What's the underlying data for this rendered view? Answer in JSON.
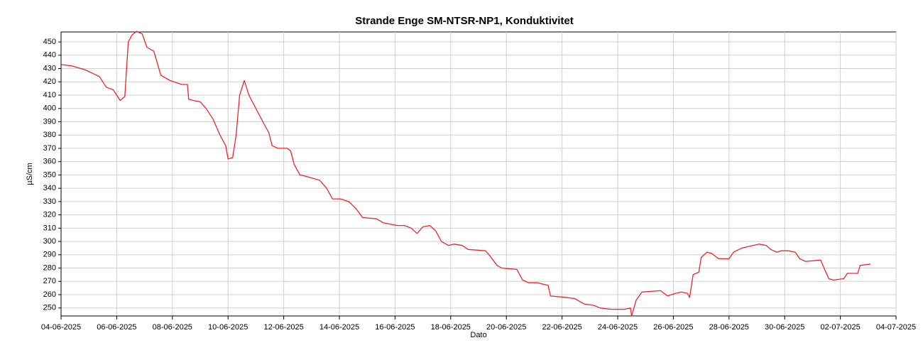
{
  "chart_data": {
    "type": "line",
    "title": "Strande Enge SM-NTSR-NP1, Konduktivitet",
    "x_label": "Dato",
    "y_label": "µS/cm",
    "x": [
      "2025-06-04T00:00",
      "2025-06-04T09:00",
      "2025-06-04T21:00",
      "2025-06-05T09:00",
      "2025-06-05T15:00",
      "2025-06-05T21:00",
      "2025-06-06T03:00",
      "2025-06-06T07:00",
      "2025-06-06T10:00",
      "2025-06-06T13:00",
      "2025-06-06T17:00",
      "2025-06-06T22:00",
      "2025-06-07T02:00",
      "2025-06-07T08:00",
      "2025-06-07T14:00",
      "2025-06-07T22:00",
      "2025-06-08T08:00",
      "2025-06-08T13:00",
      "2025-06-08T14:00",
      "2025-06-08T18:00",
      "2025-06-09T00:00",
      "2025-06-09T05:00",
      "2025-06-09T11:00",
      "2025-06-09T17:00",
      "2025-06-09T22:00",
      "2025-06-10T00:00",
      "2025-06-10T04:00",
      "2025-06-10T07:00",
      "2025-06-10T10:00",
      "2025-06-10T14:00",
      "2025-06-10T18:00",
      "2025-06-11T00:00",
      "2025-06-11T06:00",
      "2025-06-11T11:00",
      "2025-06-11T14:00",
      "2025-06-11T19:00",
      "2025-06-12T03:00",
      "2025-06-12T06:00",
      "2025-06-12T09:00",
      "2025-06-12T14:00",
      "2025-06-12T19:00",
      "2025-06-13T07:00",
      "2025-06-13T13:00",
      "2025-06-13T18:00",
      "2025-06-14T01:00",
      "2025-06-14T08:00",
      "2025-06-14T14:00",
      "2025-06-14T20:00",
      "2025-06-15T08:00",
      "2025-06-15T14:00",
      "2025-06-16T02:00",
      "2025-06-16T08:00",
      "2025-06-16T14:00",
      "2025-06-16T19:00",
      "2025-06-17T00:00",
      "2025-06-17T06:00",
      "2025-06-17T11:00",
      "2025-06-17T16:00",
      "2025-06-17T22:00",
      "2025-06-18T03:00",
      "2025-06-18T10:00",
      "2025-06-18T15:00",
      "2025-06-19T06:00",
      "2025-06-19T10:00",
      "2025-06-19T16:00",
      "2025-06-19T20:00",
      "2025-06-20T09:00",
      "2025-06-20T14:00",
      "2025-06-20T19:00",
      "2025-06-21T03:00",
      "2025-06-21T07:00",
      "2025-06-21T12:00",
      "2025-06-21T14:00",
      "2025-06-22T03:00",
      "2025-06-22T11:00",
      "2025-06-22T19:00",
      "2025-06-23T03:00",
      "2025-06-23T09:00",
      "2025-06-23T18:00",
      "2025-06-24T06:00",
      "2025-06-24T11:00",
      "2025-06-24T12:00",
      "2025-06-24T16:00",
      "2025-06-24T21:00",
      "2025-06-25T13:00",
      "2025-06-25T19:00",
      "2025-06-26T02:00",
      "2025-06-26T07:00",
      "2025-06-26T12:00",
      "2025-06-26T14:00",
      "2025-06-26T17:00",
      "2025-06-26T22:00",
      "2025-06-27T00:00",
      "2025-06-27T05:00",
      "2025-06-27T09:00",
      "2025-06-27T15:00",
      "2025-06-28T00:00",
      "2025-06-28T04:00",
      "2025-06-28T11:00",
      "2025-06-29T02:00",
      "2025-06-29T08:00",
      "2025-06-29T12:00",
      "2025-06-29T17:00",
      "2025-06-29T21:00",
      "2025-06-30T03:00",
      "2025-06-30T09:00",
      "2025-06-30T13:00",
      "2025-06-30T18:00",
      "2025-07-01T07:00",
      "2025-07-01T10:00",
      "2025-07-01T14:00",
      "2025-07-01T18:00",
      "2025-07-02T03:00",
      "2025-07-02T06:00",
      "2025-07-02T15:00",
      "2025-07-02T17:00",
      "2025-07-03T02:00"
    ],
    "values": [
      433,
      432,
      429,
      424,
      416,
      414,
      406,
      409,
      450,
      455,
      458,
      456,
      446,
      443,
      425,
      421,
      418,
      418,
      407,
      406,
      405,
      400,
      392,
      380,
      372,
      362,
      363,
      380,
      410,
      421,
      410,
      400,
      390,
      382,
      372,
      370,
      370,
      368,
      358,
      350,
      349,
      346,
      340,
      332,
      332,
      330,
      325,
      318,
      317,
      314,
      312,
      312,
      310,
      306,
      311,
      312,
      308,
      300,
      297,
      298,
      297,
      294,
      293,
      289,
      282,
      280,
      279,
      271,
      269,
      269,
      268,
      267,
      259,
      258,
      257,
      253,
      252,
      250,
      249,
      249,
      250,
      244,
      256,
      262,
      263,
      259,
      261,
      262,
      261,
      258,
      275,
      277,
      288,
      292,
      291,
      287,
      287,
      292,
      295,
      298,
      297,
      294,
      292,
      293,
      293,
      292,
      287,
      285,
      286,
      280,
      272,
      271,
      272,
      276,
      276,
      282,
      283
    ],
    "color": "#e8262a",
    "xlim": [
      "2025-06-04",
      "2025-07-04"
    ],
    "xticks": [
      {
        "value": "2025-06-04",
        "label": "04-06-2025"
      },
      {
        "value": "2025-06-06",
        "label": "06-06-2025"
      },
      {
        "value": "2025-06-08",
        "label": "08-06-2025"
      },
      {
        "value": "2025-06-10",
        "label": "10-06-2025"
      },
      {
        "value": "2025-06-12",
        "label": "12-06-2025"
      },
      {
        "value": "2025-06-14",
        "label": "14-06-2025"
      },
      {
        "value": "2025-06-16",
        "label": "16-06-2025"
      },
      {
        "value": "2025-06-18",
        "label": "18-06-2025"
      },
      {
        "value": "2025-06-20",
        "label": "20-06-2025"
      },
      {
        "value": "2025-06-22",
        "label": "22-06-2025"
      },
      {
        "value": "2025-06-24",
        "label": "24-06-2025"
      },
      {
        "value": "2025-06-26",
        "label": "26-06-2025"
      },
      {
        "value": "2025-06-28",
        "label": "28-06-2025"
      },
      {
        "value": "2025-06-30",
        "label": "30-06-2025"
      },
      {
        "value": "2025-07-02",
        "label": "02-07-2025"
      },
      {
        "value": "2025-07-04",
        "label": "04-07-2025"
      }
    ],
    "ylim": [
      244,
      457.5
    ],
    "yticks": [
      250,
      260,
      270,
      280,
      290,
      300,
      310,
      320,
      330,
      340,
      350,
      360,
      370,
      380,
      390,
      400,
      410,
      420,
      430,
      440,
      450
    ],
    "grid": true
  }
}
